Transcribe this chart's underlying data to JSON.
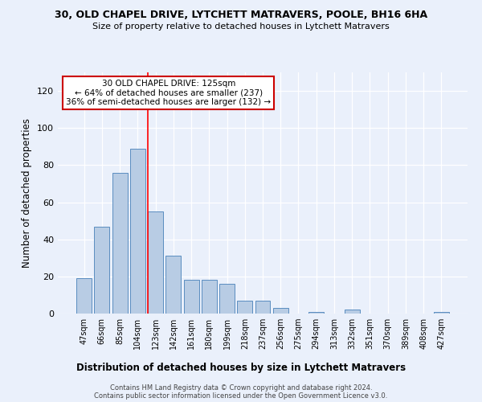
{
  "title1": "30, OLD CHAPEL DRIVE, LYTCHETT MATRAVERS, POOLE, BH16 6HA",
  "title2": "Size of property relative to detached houses in Lytchett Matravers",
  "xlabel": "Distribution of detached houses by size in Lytchett Matravers",
  "ylabel": "Number of detached properties",
  "categories": [
    "47sqm",
    "66sqm",
    "85sqm",
    "104sqm",
    "123sqm",
    "142sqm",
    "161sqm",
    "180sqm",
    "199sqm",
    "218sqm",
    "237sqm",
    "256sqm",
    "275sqm",
    "294sqm",
    "313sqm",
    "332sqm",
    "351sqm",
    "370sqm",
    "389sqm",
    "408sqm",
    "427sqm"
  ],
  "values": [
    19,
    47,
    76,
    89,
    55,
    31,
    18,
    18,
    16,
    7,
    7,
    3,
    0,
    1,
    0,
    2,
    0,
    0,
    0,
    0,
    1
  ],
  "bar_color": "#b8cce4",
  "bar_edge_color": "#5a8dc0",
  "background_color": "#eaf0fb",
  "grid_color": "#ffffff",
  "annotation_text": "30 OLD CHAPEL DRIVE: 125sqm\n← 64% of detached houses are smaller (237)\n36% of semi-detached houses are larger (132) →",
  "redline_index": 4,
  "annotation_box_color": "#ffffff",
  "annotation_box_edge_color": "#cc0000",
  "footer": "Contains HM Land Registry data © Crown copyright and database right 2024.\nContains public sector information licensed under the Open Government Licence v3.0.",
  "ylim": [
    0,
    130
  ],
  "yticks": [
    0,
    20,
    40,
    60,
    80,
    100,
    120
  ]
}
